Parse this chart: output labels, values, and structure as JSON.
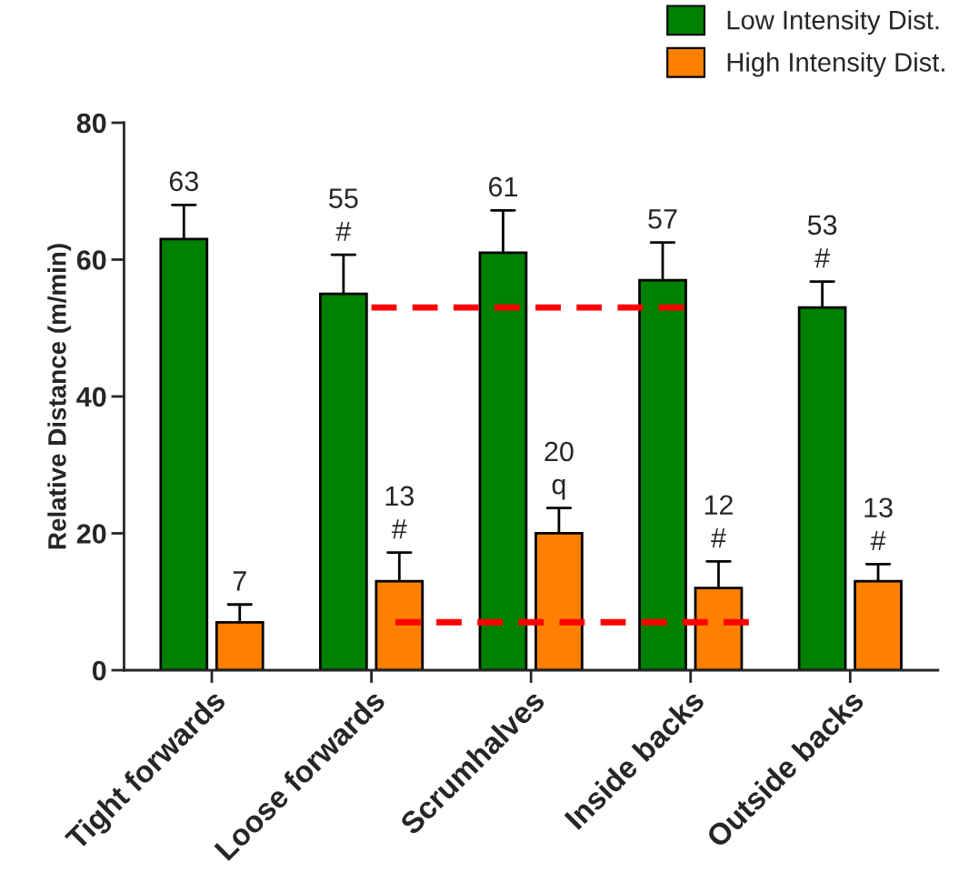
{
  "chart_data": {
    "type": "bar",
    "ylabel": "Relative Distance (m/min)",
    "categories": [
      "Tight forwards",
      "Loose forwards",
      "Scrumhalves",
      "Inside backs",
      "Outside backs"
    ],
    "series": [
      {
        "name": "Low Intensity Dist.",
        "color": "#008000",
        "values": [
          63,
          55,
          61,
          57,
          53
        ],
        "errors": [
          [
            63,
            68
          ],
          [
            55,
            60.7
          ],
          [
            61,
            67.2
          ],
          [
            57,
            62.5
          ],
          [
            53,
            56.8
          ]
        ],
        "value_labels": [
          "63",
          "55\n#",
          "61",
          "57",
          "53\n#"
        ]
      },
      {
        "name": "High Intensity Dist.",
        "color": "#ff8000",
        "values": [
          7,
          13,
          20,
          12,
          13
        ],
        "errors": [
          [
            7,
            9.6
          ],
          [
            13,
            17.2
          ],
          [
            20,
            23.7
          ],
          [
            12,
            15.9
          ],
          [
            13,
            15.5
          ]
        ],
        "value_labels": [
          "7",
          "13\n#",
          "20\nq",
          "12\n#",
          "13\n#"
        ]
      }
    ],
    "ylim": [
      0,
      80
    ],
    "yticks": [
      0,
      20,
      40,
      60,
      80
    ],
    "grid": false,
    "legend": "top right",
    "ref_lines": [
      {
        "axis": "y",
        "value": 53,
        "color": "#ff0000",
        "line_style": "dashed"
      },
      {
        "axis": "y",
        "value": 7,
        "color": "#ff0000",
        "line_style": "dashed"
      }
    ]
  }
}
